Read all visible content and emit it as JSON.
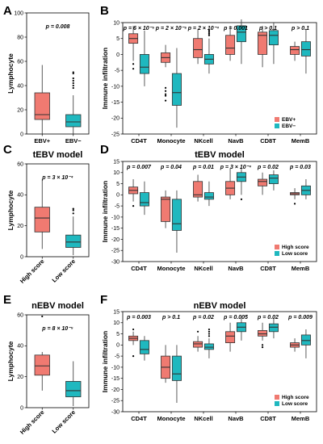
{
  "colors": {
    "group1": "#f07a71",
    "group2": "#1fb8bf",
    "line": "#333333"
  },
  "chart_data": [
    {
      "panel": "A",
      "type": "box",
      "title": "",
      "ylabel": "Lymphocyte",
      "ylim": [
        0,
        100
      ],
      "yticks": [
        "0",
        "20",
        "40",
        "60",
        "80",
        "100"
      ],
      "pvalue": "p = 0.008",
      "categories": [
        "EBV+",
        "EBV−"
      ],
      "boxes": [
        {
          "min": 0,
          "q1": 12,
          "median": 16,
          "q3": 34,
          "max": 57,
          "outliers": []
        },
        {
          "min": 0,
          "q1": 6,
          "median": 10,
          "q3": 16,
          "max": 32,
          "outliers": [
            38,
            40,
            42,
            44,
            46,
            50,
            51
          ]
        }
      ]
    },
    {
      "panel": "B",
      "type": "box",
      "title": "",
      "ylabel": "Immune infiltration",
      "ylim": [
        -25,
        10
      ],
      "yticks": [
        "-25",
        "-20",
        "-15",
        "-10",
        "-5",
        "0",
        "5",
        "10"
      ],
      "categories": [
        "CD4T",
        "Monocyte",
        "NKcell",
        "NavB",
        "CD8T",
        "MemB"
      ],
      "pvalues": [
        "p = 6 × 10⁻⁵",
        "p = 2 × 10⁻⁵",
        "p = 2 × 10⁻⁴",
        "p = 0.001",
        "p > 0.1",
        "p > 0.1"
      ],
      "legend": [
        "EBV+",
        "EBV−"
      ],
      "series": [
        {
          "name": "EBV+",
          "boxes": [
            {
              "min": -2,
              "q1": 3.5,
              "median": 5,
              "q3": 6.5,
              "max": 9,
              "outliers": [
                -3,
                -4.5
              ]
            },
            {
              "min": -4,
              "q1": -2.5,
              "median": -1,
              "q3": 0.5,
              "max": 3,
              "outliers": [
                -10.5,
                -11.5,
                -12.5,
                -13,
                -14.5
              ]
            },
            {
              "min": -3,
              "q1": -1,
              "median": 1.5,
              "q3": 5,
              "max": 8,
              "outliers": []
            },
            {
              "min": -2,
              "q1": 0,
              "median": 2,
              "q3": 6,
              "max": 9,
              "outliers": []
            },
            {
              "min": -4,
              "q1": 0,
              "median": 6,
              "q3": 7,
              "max": 9,
              "outliers": []
            },
            {
              "min": -2,
              "q1": 0,
              "median": 1.5,
              "q3": 2.5,
              "max": 4,
              "outliers": []
            }
          ]
        },
        {
          "name": "EBV−",
          "boxes": [
            {
              "min": -10,
              "q1": -6,
              "median": -4,
              "q3": 0,
              "max": 7.5,
              "outliers": []
            },
            {
              "min": -23,
              "q1": -16,
              "median": -12,
              "q3": -6,
              "max": 2,
              "outliers": []
            },
            {
              "min": -6,
              "q1": -3,
              "median": -1.5,
              "q3": 0,
              "max": 5,
              "outliers": [
                6,
                6.5,
                7,
                7.5
              ]
            },
            {
              "min": -3,
              "q1": 4,
              "median": 7,
              "q3": 9,
              "max": 11,
              "outliers": []
            },
            {
              "min": -3,
              "q1": 3,
              "median": 6,
              "q3": 7.5,
              "max": 10,
              "outliers": []
            },
            {
              "min": -6,
              "q1": -0.5,
              "median": 1.5,
              "q3": 4,
              "max": 8,
              "outliers": []
            }
          ]
        }
      ]
    },
    {
      "panel": "C",
      "type": "box",
      "title": "tEBV model",
      "ylabel": "Lymphocyte",
      "ylim": [
        0,
        60
      ],
      "yticks": [
        "0",
        "20",
        "40",
        "60"
      ],
      "pvalue": "p = 3 × 10⁻⁴",
      "categories": [
        "High score",
        "Low score"
      ],
      "boxes": [
        {
          "min": 5,
          "q1": 16,
          "median": 25,
          "q3": 32,
          "max": 50,
          "outliers": []
        },
        {
          "min": 1,
          "q1": 6,
          "median": 9.5,
          "q3": 14,
          "max": 26,
          "outliers": [
            28,
            30,
            31
          ]
        }
      ]
    },
    {
      "panel": "D",
      "type": "box",
      "title": "tEBV model",
      "ylabel": "Immune infiltration",
      "ylim": [
        -30,
        15
      ],
      "yticks": [
        "-30",
        "-25",
        "-20",
        "-15",
        "-10",
        "-5",
        "0",
        "5",
        "10",
        "15"
      ],
      "categories": [
        "CD4T",
        "Monocyte",
        "NKcell",
        "NavB",
        "CD8T",
        "MemB"
      ],
      "pvalues": [
        "p = 0.007",
        "p = 0.04",
        "p = 0.01",
        "p = 3 × 10⁻⁴",
        "p = 0.02",
        "p = 0.03"
      ],
      "legend": [
        "High score",
        "Low score"
      ],
      "series": [
        {
          "name": "High score",
          "boxes": [
            {
              "min": -3,
              "q1": 0.5,
              "median": 2,
              "q3": 3.5,
              "max": 7,
              "outliers": [
                -5
              ]
            },
            {
              "min": -15,
              "q1": -12,
              "median": -2,
              "q3": -1,
              "max": 2,
              "outliers": []
            },
            {
              "min": -3,
              "q1": -1,
              "median": 0,
              "q3": 6,
              "max": 9,
              "outliers": []
            },
            {
              "min": -2,
              "q1": 0,
              "median": 3,
              "q3": 6,
              "max": 12,
              "outliers": []
            },
            {
              "min": 0,
              "q1": 4,
              "median": 6,
              "q3": 7,
              "max": 10,
              "outliers": []
            },
            {
              "min": -2,
              "q1": 0,
              "median": 0.5,
              "q3": 1,
              "max": 3,
              "outliers": [
                -4
              ]
            }
          ]
        },
        {
          "name": "Low score",
          "boxes": [
            {
              "min": -9,
              "q1": -5,
              "median": -3.5,
              "q3": 1,
              "max": 6,
              "outliers": []
            },
            {
              "min": -26,
              "q1": -16,
              "median": -13,
              "q3": -2,
              "max": 2,
              "outliers": []
            },
            {
              "min": -5,
              "q1": -2,
              "median": -1,
              "q3": 1,
              "max": 6,
              "outliers": []
            },
            {
              "min": 0,
              "q1": 6,
              "median": 8,
              "q3": 10,
              "max": 12,
              "outliers": [
                -2
              ]
            },
            {
              "min": 2,
              "q1": 5,
              "median": 7.5,
              "q3": 9,
              "max": 11,
              "outliers": []
            },
            {
              "min": -2,
              "q1": 0,
              "median": 2,
              "q3": 4,
              "max": 7,
              "outliers": []
            }
          ]
        }
      ]
    },
    {
      "panel": "E",
      "type": "box",
      "title": "nEBV model",
      "ylabel": "Lymphocyte",
      "ylim": [
        0,
        60
      ],
      "yticks": [
        "0",
        "20",
        "40",
        "60"
      ],
      "pvalue": "p = 8 × 10⁻⁵",
      "categories": [
        "High score",
        "Low score"
      ],
      "boxes": [
        {
          "min": 11,
          "q1": 21,
          "median": 27,
          "q3": 34,
          "max": 36,
          "outliers": [
            59
          ]
        },
        {
          "min": 1,
          "q1": 7,
          "median": 11,
          "q3": 17,
          "max": 30,
          "outliers": []
        }
      ]
    },
    {
      "panel": "F",
      "type": "box",
      "title": "nEBV model",
      "ylabel": "Immune infiltration",
      "ylim": [
        -30,
        15
      ],
      "yticks": [
        "-30",
        "-25",
        "-20",
        "-15",
        "-10",
        "-5",
        "0",
        "5",
        "10",
        "15"
      ],
      "categories": [
        "CD4T",
        "Monocyte",
        "NKcell",
        "NavB",
        "CD8T",
        "MemB"
      ],
      "pvalues": [
        "p = 0.003",
        "p > 0.1",
        "p = 0.02",
        "p = 0.005",
        "p = 0.02",
        "p = 0.009"
      ],
      "legend": [
        "High score",
        "Low score"
      ],
      "series": [
        {
          "name": "High score",
          "boxes": [
            {
              "min": 0,
              "q1": 2,
              "median": 3,
              "q3": 4,
              "max": 6,
              "outliers": [
                -5,
                7
              ]
            },
            {
              "min": -17,
              "q1": -15,
              "median": -10,
              "q3": -5,
              "max": 0,
              "outliers": []
            },
            {
              "min": -3,
              "q1": -1,
              "median": 0.5,
              "q3": 1.5,
              "max": 4,
              "outliers": [
                6
              ]
            },
            {
              "min": -3,
              "q1": 1,
              "median": 4,
              "q3": 6,
              "max": 10,
              "outliers": []
            },
            {
              "min": 2,
              "q1": 4,
              "median": 5,
              "q3": 6.5,
              "max": 10,
              "outliers": [
                -1,
                0
              ]
            },
            {
              "min": -3,
              "q1": -1,
              "median": 0,
              "q3": 1,
              "max": 3,
              "outliers": []
            }
          ]
        },
        {
          "name": "Low score",
          "boxes": [
            {
              "min": -7,
              "q1": -4,
              "median": -2,
              "q3": 2,
              "max": 4,
              "outliers": []
            },
            {
              "min": -26,
              "q1": -16,
              "median": -13,
              "q3": -5,
              "max": 0,
              "outliers": []
            },
            {
              "min": -6,
              "q1": -2,
              "median": -1,
              "q3": 0.5,
              "max": 3,
              "outliers": [
                4,
                5,
                6,
                7
              ]
            },
            {
              "min": 2,
              "q1": 6,
              "median": 8,
              "q3": 10,
              "max": 12,
              "outliers": []
            },
            {
              "min": 3,
              "q1": 6,
              "median": 8,
              "q3": 9.5,
              "max": 12,
              "outliers": []
            },
            {
              "min": -6,
              "q1": 0,
              "median": 2,
              "q3": 4.5,
              "max": 7,
              "outliers": []
            }
          ]
        }
      ]
    }
  ]
}
